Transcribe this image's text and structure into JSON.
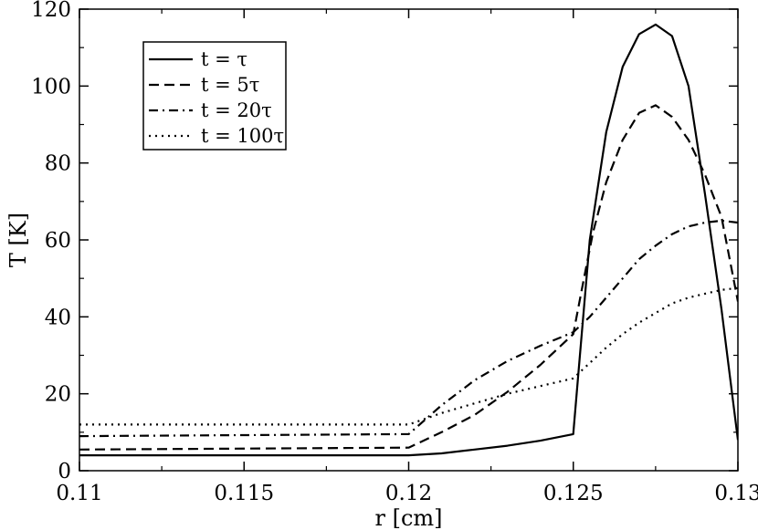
{
  "chart_data": {
    "type": "line",
    "xlabel": "r [cm]",
    "ylabel": "T [K]",
    "xlim": [
      0.11,
      0.13
    ],
    "ylim": [
      0,
      120
    ],
    "x_ticks": [
      0.11,
      0.115,
      0.12,
      0.125,
      0.13
    ],
    "x_tick_labels": [
      "0.11",
      "0.115",
      "0.12",
      "0.125",
      "0.13"
    ],
    "y_ticks": [
      0,
      20,
      40,
      60,
      80,
      100,
      120
    ],
    "y_tick_labels": [
      "0",
      "20",
      "40",
      "60",
      "80",
      "100",
      "120"
    ],
    "grid": false,
    "legend_position": "top-left",
    "series": [
      {
        "name": "t = τ",
        "dash": "solid",
        "x": [
          0.11,
          0.12,
          0.121,
          0.122,
          0.123,
          0.124,
          0.125,
          0.1252,
          0.1255,
          0.126,
          0.1265,
          0.127,
          0.1275,
          0.128,
          0.1285,
          0.129,
          0.1295,
          0.13
        ],
        "y": [
          4,
          4,
          4.5,
          5.5,
          6.5,
          7.8,
          9.5,
          30,
          60,
          88,
          105,
          113.5,
          116,
          113,
          100,
          72,
          42,
          8
        ]
      },
      {
        "name": "t = 5τ",
        "dash": "dashed",
        "x": [
          0.11,
          0.12,
          0.121,
          0.122,
          0.123,
          0.124,
          0.125,
          0.1253,
          0.1256,
          0.126,
          0.1265,
          0.127,
          0.1275,
          0.128,
          0.1285,
          0.129,
          0.1295,
          0.13
        ],
        "y": [
          5.5,
          6,
          10,
          14.5,
          20.5,
          27.5,
          35.5,
          49,
          62,
          75,
          86,
          93,
          95,
          92,
          86,
          77,
          66,
          44
        ]
      },
      {
        "name": "t = 20τ",
        "dash": "dashdot",
        "x": [
          0.11,
          0.12,
          0.121,
          0.122,
          0.123,
          0.124,
          0.125,
          0.1255,
          0.126,
          0.1265,
          0.127,
          0.1275,
          0.128,
          0.1285,
          0.129,
          0.1295,
          0.13
        ],
        "y": [
          9,
          9.5,
          17,
          23.5,
          28.5,
          32.5,
          36,
          40,
          45,
          50,
          55,
          58.5,
          61.5,
          63.5,
          64.5,
          65,
          64.5
        ]
      },
      {
        "name": "t = 100τ",
        "dash": "dotted",
        "x": [
          0.11,
          0.12,
          0.121,
          0.122,
          0.123,
          0.124,
          0.125,
          0.1255,
          0.126,
          0.1265,
          0.127,
          0.1275,
          0.128,
          0.1285,
          0.129,
          0.1295,
          0.13
        ],
        "y": [
          12,
          12,
          15,
          17.5,
          20,
          22,
          24,
          28,
          32,
          35.5,
          38.5,
          41,
          43.5,
          45,
          46,
          47,
          47.5
        ]
      }
    ]
  }
}
